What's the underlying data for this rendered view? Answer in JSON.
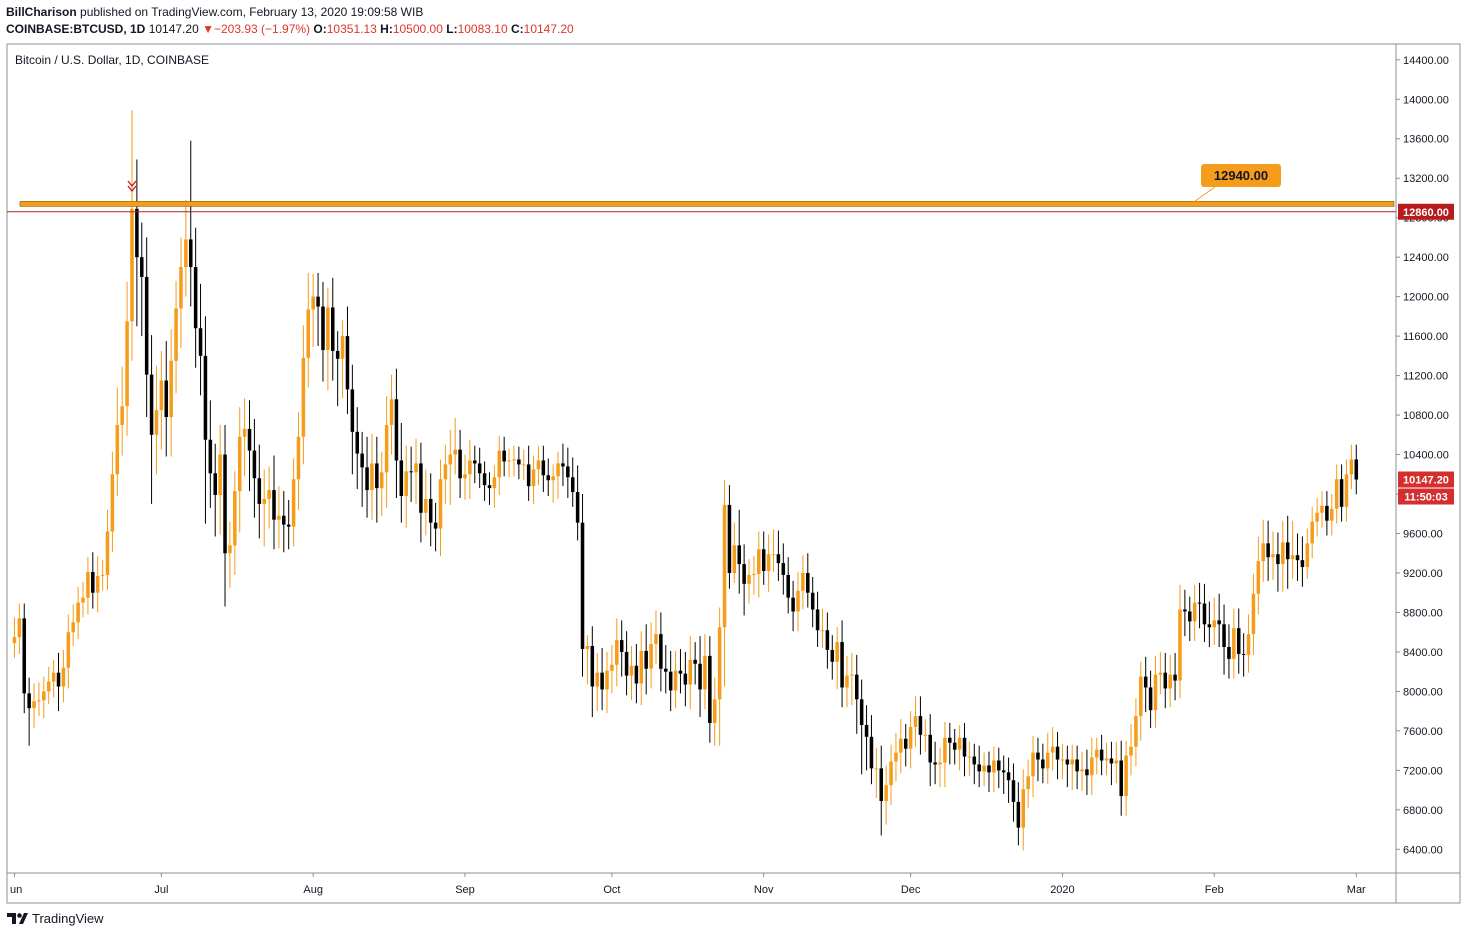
{
  "header": {
    "author": "BillCharison",
    "published_text": " published on TradingView.com, February 13, 2020 19:09:58 WIB",
    "symbol": "COINBASE:BTCUSD, 1D",
    "last": "10147.20",
    "change": "−203.93 (−1.97%)",
    "o_label": "O:",
    "o_value": "10351.13",
    "h_label": "H:",
    "h_value": "10500.00",
    "l_label": "L:",
    "l_value": "10083.10",
    "c_label": "C:",
    "c_value": "10147.20"
  },
  "footer": {
    "brand": "TradingView"
  },
  "chart_data": {
    "type": "candlestick",
    "title": "Bitcoin / U.S. Dollar, 1D, COINBASE",
    "ylim": [
      6160,
      14560
    ],
    "y_ticks": [
      "14400.00",
      "14000.00",
      "13600.00",
      "13200.00",
      "12800.00",
      "12400.00",
      "12000.00",
      "11600.00",
      "11200.00",
      "10800.00",
      "10400.00",
      "10000.00",
      "9600.00",
      "9200.00",
      "8800.00",
      "8400.00",
      "8000.00",
      "7600.00",
      "7200.00",
      "6800.00",
      "6400.00"
    ],
    "x_ticks": [
      {
        "label": "un",
        "day": 0
      },
      {
        "label": "Jul",
        "day": 30
      },
      {
        "label": "Aug",
        "day": 61
      },
      {
        "label": "Sep",
        "day": 92
      },
      {
        "label": "Oct",
        "day": 122
      },
      {
        "label": "Nov",
        "day": 153
      },
      {
        "label": "Dec",
        "day": 183
      },
      {
        "label": "2020",
        "day": 214
      },
      {
        "label": "Feb",
        "day": 245
      },
      {
        "label": "Mar",
        "day": 274
      }
    ],
    "resistance_level": 12940.0,
    "resistance_label": "12940.00",
    "horizontal_line": 12860.0,
    "horizontal_line_label": "12860.00",
    "last_price_label": "10147.20",
    "countdown_label": "11:50:03",
    "colors": {
      "up": "#f59c1a",
      "down": "#000000",
      "resistance": "#f59c1a",
      "hline": "#b71c1c",
      "last": "#d32f2f"
    },
    "closes": [
      8550,
      8740,
      7980,
      7830,
      7900,
      7910,
      8000,
      8100,
      8190,
      8050,
      8240,
      8600,
      8700,
      8900,
      8950,
      9210,
      9000,
      9170,
      9180,
      9620,
      10200,
      10700,
      10890,
      11750,
      12890,
      12400,
      12200,
      11210,
      10600,
      10850,
      11150,
      10780,
      11350,
      11880,
      12300,
      12580,
      12300,
      11680,
      11400,
      10550,
      10210,
      9990,
      10400,
      9400,
      9480,
      10030,
      10580,
      10660,
      10440,
      10160,
      9900,
      9950,
      10040,
      9740,
      9780,
      9690,
      9670,
      10150,
      10580,
      11380,
      11870,
      12000,
      11900,
      11460,
      11890,
      11450,
      11370,
      11600,
      11060,
      10630,
      10410,
      10270,
      10040,
      10310,
      10060,
      10220,
      10700,
      10960,
      10340,
      9980,
      10230,
      10220,
      10310,
      9810,
      9950,
      9710,
      9650,
      10150,
      10300,
      10400,
      10450,
      10160,
      10200,
      10340,
      10310,
      10210,
      10090,
      10060,
      10170,
      10440,
      10330,
      10340,
      10350,
      10300,
      10300,
      10080,
      10250,
      10340,
      10190,
      10140,
      10180,
      10310,
      10280,
      10170,
      10020,
      9710,
      8430,
      8460,
      8050,
      8190,
      8020,
      8210,
      8270,
      8520,
      8400,
      8160,
      8260,
      8080,
      8410,
      8230,
      8480,
      8580,
      8230,
      8200,
      8010,
      8210,
      8180,
      8070,
      8320,
      8280,
      8020,
      8360,
      7680,
      7920,
      8650,
      9890,
      9200,
      9480,
      9290,
      9090,
      9180,
      9190,
      9440,
      9220,
      9390,
      9390,
      9300,
      9180,
      8950,
      8810,
      9020,
      9200,
      9000,
      8830,
      8620,
      8620,
      8420,
      8300,
      8500,
      8040,
      8160,
      8170,
      7920,
      7660,
      7540,
      7220,
      7220,
      6890,
      7050,
      7290,
      7380,
      7520,
      7420,
      7640,
      7750,
      7560,
      7560,
      7280,
      7260,
      7280,
      7530,
      7480,
      7410,
      7530,
      7340,
      7340,
      7260,
      7190,
      7250,
      7180,
      7300,
      7200,
      7180,
      7100,
      6880,
      6620,
      7010,
      7140,
      7380,
      7310,
      7220,
      7380,
      7440,
      7310,
      7310,
      7260,
      7310,
      7190,
      7210,
      7150,
      7330,
      7410,
      7300,
      7320,
      7270,
      7300,
      6940,
      7350,
      7440,
      7750,
      8150,
      8040,
      7810,
      8170,
      8190,
      8030,
      8170,
      8110,
      8830,
      8810,
      8710,
      8900,
      8890,
      8680,
      8650,
      8720,
      8680,
      8450,
      8330,
      8640,
      8380,
      8370,
      8580,
      8990,
      9320,
      9500,
      9360,
      9390,
      9290,
      9510,
      9340,
      9380,
      9330,
      9260,
      9500,
      9720,
      9810,
      9880,
      9730,
      9850,
      10150,
      9870,
      10200,
      10350,
      10147
    ],
    "ranges": [
      [
        200,
        150
      ],
      [
        150,
        170
      ],
      [
        150,
        200
      ],
      [
        160,
        380
      ],
      [
        180,
        200
      ],
      [
        180,
        150
      ],
      [
        150,
        180
      ],
      [
        150,
        130
      ],
      [
        130,
        160
      ],
      [
        200,
        250
      ],
      [
        180,
        160
      ],
      [
        180,
        210
      ],
      [
        180,
        140
      ],
      [
        160,
        170
      ],
      [
        160,
        150
      ],
      [
        150,
        170
      ],
      [
        200,
        160
      ],
      [
        200,
        200
      ],
      [
        150,
        150
      ],
      [
        220,
        150
      ],
      [
        230,
        210
      ],
      [
        380,
        220
      ],
      [
        400,
        310
      ],
      [
        400,
        300
      ],
      [
        1000,
        400
      ],
      [
        500,
        700
      ],
      [
        350,
        600
      ],
      [
        400,
        430
      ],
      [
        400,
        700
      ],
      [
        450,
        400
      ],
      [
        300,
        400
      ],
      [
        400,
        400
      ],
      [
        320,
        400
      ],
      [
        280,
        330
      ],
      [
        300,
        400
      ],
      [
        400,
        300
      ],
      [
        1000,
        400
      ],
      [
        400,
        400
      ],
      [
        450,
        400
      ],
      [
        400,
        850
      ],
      [
        400,
        350
      ],
      [
        300,
        420
      ],
      [
        300,
        400
      ],
      [
        300,
        540
      ],
      [
        240,
        350
      ],
      [
        200,
        300
      ],
      [
        300,
        420
      ],
      [
        310,
        400
      ],
      [
        290,
        410
      ],
      [
        320,
        400
      ],
      [
        340,
        350
      ],
      [
        300,
        430
      ],
      [
        240,
        300
      ],
      [
        350,
        300
      ],
      [
        300,
        290
      ],
      [
        250,
        280
      ],
      [
        250,
        230
      ],
      [
        210,
        200
      ],
      [
        250,
        310
      ],
      [
        330,
        280
      ],
      [
        370,
        300
      ],
      [
        230,
        380
      ],
      [
        240,
        400
      ],
      [
        250,
        320
      ],
      [
        200,
        410
      ],
      [
        300,
        300
      ],
      [
        200,
        480
      ],
      [
        160,
        400
      ],
      [
        300,
        250
      ],
      [
        250,
        430
      ],
      [
        250,
        360
      ],
      [
        220,
        400
      ],
      [
        310,
        280
      ],
      [
        300,
        300
      ],
      [
        270,
        350
      ],
      [
        210,
        280
      ],
      [
        290,
        360
      ],
      [
        250,
        300
      ],
      [
        310,
        380
      ],
      [
        380,
        270
      ],
      [
        260,
        320
      ],
      [
        250,
        300
      ],
      [
        250,
        320
      ],
      [
        210,
        300
      ],
      [
        300,
        230
      ],
      [
        260,
        240
      ],
      [
        200,
        230
      ],
      [
        200,
        280
      ],
      [
        200,
        250
      ],
      [
        250,
        410
      ],
      [
        320,
        200
      ],
      [
        200,
        200
      ],
      [
        200,
        220
      ],
      [
        210,
        250
      ],
      [
        150,
        200
      ],
      [
        160,
        150
      ],
      [
        120,
        160
      ],
      [
        130,
        170
      ],
      [
        120,
        200
      ],
      [
        150,
        180
      ],
      [
        140,
        150
      ],
      [
        120,
        160
      ],
      [
        140,
        160
      ],
      [
        130,
        150
      ],
      [
        150,
        160
      ],
      [
        190,
        150
      ],
      [
        140,
        180
      ],
      [
        150,
        160
      ],
      [
        150,
        170
      ],
      [
        170,
        160
      ],
      [
        120,
        230
      ],
      [
        120,
        230
      ],
      [
        200,
        200
      ],
      [
        190,
        210
      ],
      [
        200,
        150
      ],
      [
        270,
        180
      ],
      [
        290,
        280
      ],
      [
        110,
        360
      ],
      [
        200,
        310
      ],
      [
        200,
        250
      ],
      [
        250,
        210
      ],
      [
        190,
        240
      ],
      [
        200,
        230
      ],
      [
        220,
        220
      ],
      [
        200,
        250
      ],
      [
        210,
        200
      ],
      [
        200,
        250
      ],
      [
        220,
        200
      ],
      [
        200,
        220
      ],
      [
        270,
        260
      ],
      [
        220,
        200
      ],
      [
        240,
        200
      ],
      [
        220,
        230
      ],
      [
        240,
        220
      ],
      [
        210,
        210
      ],
      [
        200,
        180
      ],
      [
        220,
        200
      ],
      [
        220,
        220
      ],
      [
        240,
        250
      ],
      [
        180,
        210
      ],
      [
        280,
        280
      ],
      [
        220,
        200
      ],
      [
        200,
        200
      ],
      [
        220,
        230
      ],
      [
        200,
        470
      ],
      [
        250,
        600
      ],
      [
        200,
        160
      ],
      [
        230,
        100
      ],
      [
        360,
        300
      ],
      [
        200,
        320
      ],
      [
        160,
        200
      ],
      [
        180,
        200
      ],
      [
        180,
        240
      ],
      [
        180,
        140
      ],
      [
        200,
        210
      ],
      [
        250,
        180
      ],
      [
        240,
        180
      ],
      [
        200,
        200
      ],
      [
        180,
        160
      ],
      [
        170,
        200
      ],
      [
        190,
        200
      ],
      [
        180,
        190
      ],
      [
        200,
        150
      ],
      [
        160,
        180
      ],
      [
        180,
        170
      ],
      [
        220,
        180
      ],
      [
        180,
        190
      ],
      [
        150,
        180
      ],
      [
        150,
        280
      ],
      [
        220,
        200
      ],
      [
        200,
        200
      ],
      [
        220,
        300
      ],
      [
        200,
        350
      ],
      [
        200,
        500
      ],
      [
        200,
        340
      ],
      [
        220,
        160
      ],
      [
        210,
        300
      ],
      [
        230,
        350
      ],
      [
        200,
        240
      ],
      [
        170,
        200
      ],
      [
        200,
        200
      ],
      [
        200,
        210
      ],
      [
        150,
        180
      ],
      [
        160,
        200
      ],
      [
        200,
        200
      ],
      [
        200,
        200
      ],
      [
        160,
        170
      ],
      [
        210,
        240
      ],
      [
        210,
        200
      ],
      [
        150,
        230
      ],
      [
        160,
        250
      ],
      [
        150,
        220
      ],
      [
        140,
        150
      ],
      [
        130,
        210
      ],
      [
        150,
        200
      ],
      [
        150,
        200
      ],
      [
        130,
        200
      ],
      [
        190,
        160
      ],
      [
        130,
        150
      ],
      [
        140,
        200
      ],
      [
        140,
        200
      ],
      [
        130,
        180
      ],
      [
        150,
        220
      ],
      [
        150,
        230
      ],
      [
        170,
        200
      ],
      [
        200,
        180
      ],
      [
        200,
        230
      ],
      [
        170,
        190
      ],
      [
        170,
        210
      ],
      [
        150,
        220
      ],
      [
        160,
        150
      ],
      [
        200,
        160
      ],
      [
        200,
        180
      ],
      [
        150,
        200
      ],
      [
        160,
        200
      ],
      [
        140,
        230
      ],
      [
        150,
        260
      ],
      [
        140,
        180
      ],
      [
        180,
        200
      ],
      [
        200,
        200
      ],
      [
        200,
        200
      ],
      [
        120,
        170
      ],
      [
        150,
        150
      ],
      [
        160,
        150
      ],
      [
        170,
        220
      ],
      [
        190,
        200
      ],
      [
        200,
        200
      ],
      [
        150,
        200
      ],
      [
        230,
        200
      ],
      [
        180,
        200
      ],
      [
        150,
        250
      ],
      [
        200,
        250
      ],
      [
        170,
        180
      ],
      [
        190,
        180
      ],
      [
        210,
        200
      ],
      [
        200,
        200
      ],
      [
        200,
        190
      ],
      [
        220,
        200
      ],
      [
        250,
        180
      ],
      [
        200,
        250
      ],
      [
        150,
        200
      ],
      [
        180,
        200
      ],
      [
        200,
        250
      ],
      [
        200,
        180
      ],
      [
        230,
        200
      ],
      [
        230,
        180
      ],
      [
        270,
        230
      ],
      [
        200,
        280
      ],
      [
        230,
        200
      ],
      [
        200,
        200
      ],
      [
        200,
        200
      ],
      [
        210,
        220
      ],
      [
        200,
        180
      ],
      [
        200,
        210
      ],
      [
        250,
        210
      ],
      [
        240,
        210
      ],
      [
        230,
        240
      ],
      [
        230,
        230
      ],
      [
        220,
        280
      ],
      [
        220,
        280
      ],
      [
        270,
        300
      ],
      [
        350,
        200
      ],
      [
        220,
        210
      ],
      [
        240,
        200
      ],
      [
        150,
        120
      ]
    ]
  }
}
